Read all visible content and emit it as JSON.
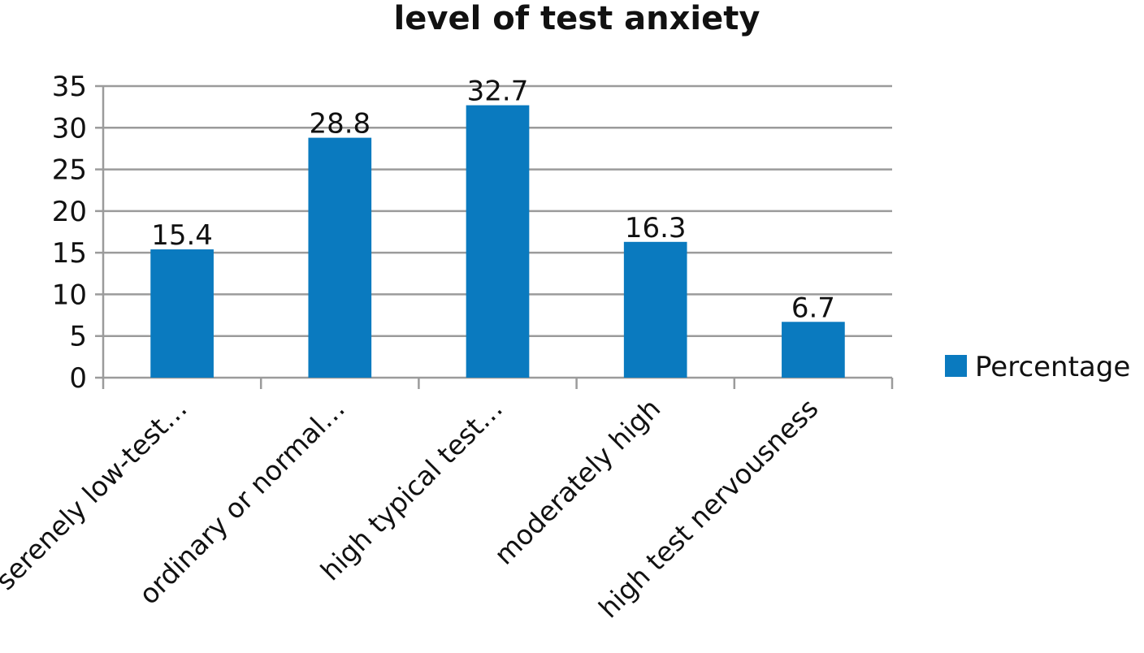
{
  "chart_data": {
    "type": "bar",
    "title": "level of test anxiety",
    "categories": [
      "serenely low-test…",
      "ordinary or normal…",
      "high typical test…",
      "moderately high",
      "high test nervousness"
    ],
    "series": [
      {
        "name": "Percentage",
        "values": [
          15.4,
          28.8,
          32.7,
          16.3,
          6.7
        ],
        "color": "#0a7abf"
      }
    ],
    "data_labels": [
      "15.4",
      "28.8",
      "32.7",
      "16.3",
      "6.7"
    ],
    "yticks": [
      "0",
      "5",
      "10",
      "15",
      "20",
      "25",
      "30",
      "35"
    ],
    "ylim": [
      0,
      35
    ],
    "grid": true,
    "legend_position": "right"
  }
}
